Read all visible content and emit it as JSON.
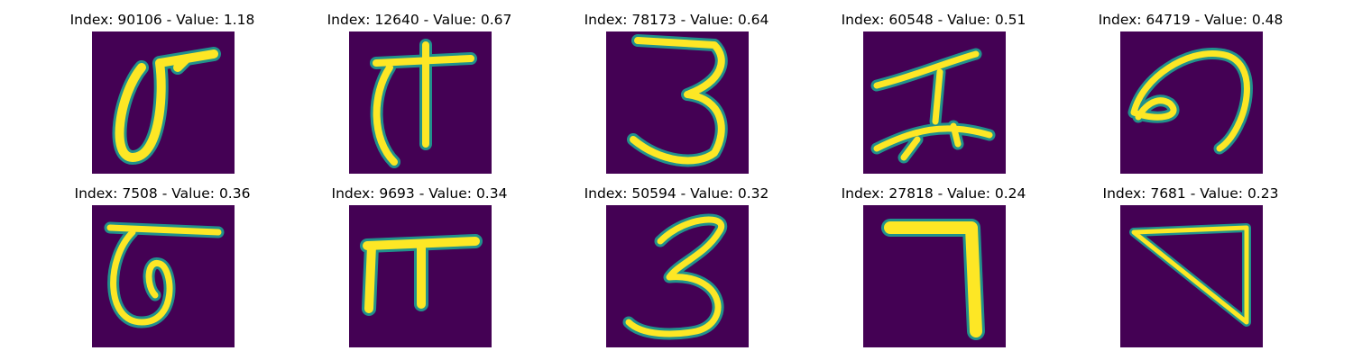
{
  "colors": {
    "background": "#440154",
    "mid": "#21918c",
    "high": "#fde725"
  },
  "panels": [
    {
      "title": "Index: 90106 - Value: 1.18",
      "glyph": "zero-with-bar"
    },
    {
      "title": "Index: 12640 - Value: 0.67",
      "glyph": "T-loop"
    },
    {
      "title": "Index: 78173 - Value: 0.64",
      "glyph": "three"
    },
    {
      "title": "Index: 60548 - Value: 0.51",
      "glyph": "I-character"
    },
    {
      "title": "Index: 64719 - Value: 0.48",
      "glyph": "six-curl"
    },
    {
      "title": "Index: 7508 - Value: 0.36",
      "glyph": "six-with-bar"
    },
    {
      "title": "Index: 9693 - Value: 0.34",
      "glyph": "pi"
    },
    {
      "title": "Index: 50594 - Value: 0.32",
      "glyph": "three"
    },
    {
      "title": "Index: 27818 - Value: 0.24",
      "glyph": "seven"
    },
    {
      "title": "Index: 7681 - Value: 0.23",
      "glyph": "triangle"
    }
  ]
}
